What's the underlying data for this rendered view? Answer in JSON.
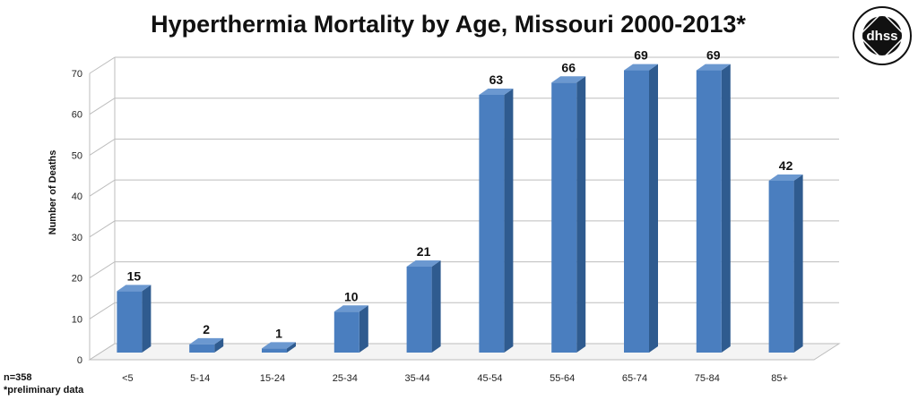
{
  "chart_data": {
    "type": "bar",
    "title": "Hyperthermia Mortality by Age, Missouri 2000-2013*",
    "xlabel": "",
    "ylabel": "Number of Deaths",
    "categories": [
      "<5",
      "5-14",
      "15-24",
      "25-34",
      "35-44",
      "45-54",
      "55-64",
      "65-74",
      "75-84",
      "85+"
    ],
    "values": [
      15,
      2,
      1,
      10,
      21,
      63,
      66,
      69,
      69,
      42
    ],
    "ylim": [
      0,
      70
    ],
    "yticks": [
      0,
      10,
      20,
      30,
      40,
      50,
      60,
      70
    ],
    "grid": true,
    "legend": "none"
  },
  "notes": {
    "n": "n=358",
    "preliminary": "*preliminary data"
  },
  "logo": {
    "text": "dhss",
    "ring_text": "MISSOURI DEPARTMENT OF HEALTH AND SENIOR SERVICES"
  },
  "colors": {
    "bar_front": "#4a7ebf",
    "bar_side": "#2f5b8f",
    "bar_top": "#6b98d0",
    "grid": "#bdbdbd"
  }
}
